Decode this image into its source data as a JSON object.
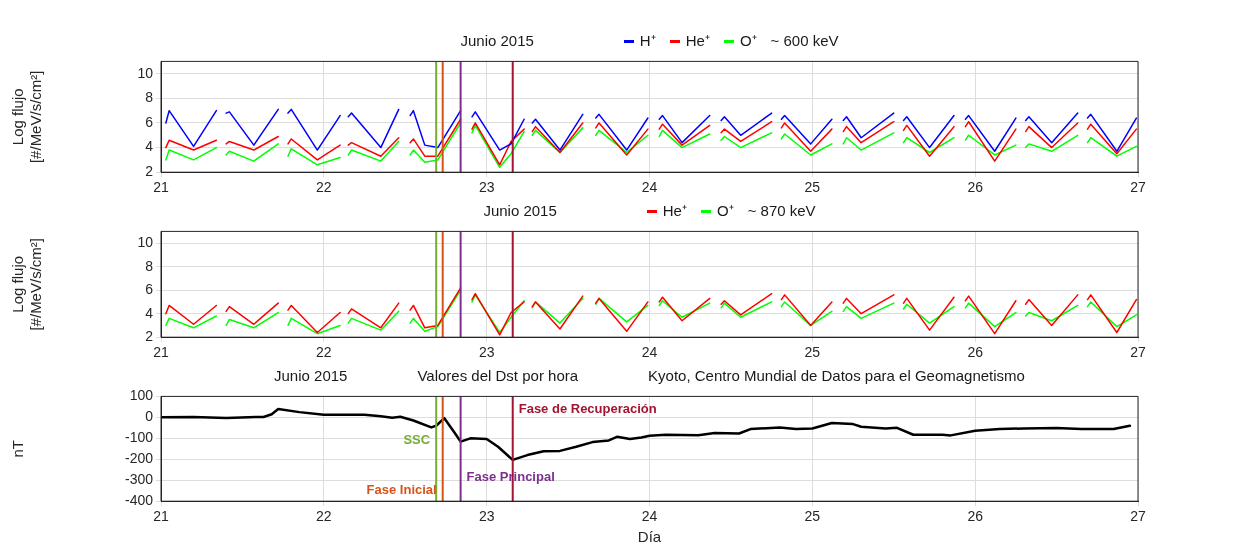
{
  "chart_data": [
    {
      "type": "line",
      "title": "Junio 2015",
      "ylabel": "Log flujo\n[#/MeV/s/cm²]",
      "legend": "top",
      "legend_title": "~ 600 keV",
      "grid": true,
      "xlim": [
        21,
        27
      ],
      "xticks": [
        21,
        22,
        23,
        24,
        25,
        26,
        27
      ],
      "ylim": [
        2,
        11
      ],
      "yticks": [
        2,
        4,
        6,
        8,
        10
      ],
      "x": [
        21.03,
        21.05,
        21.2,
        21.34,
        21.37,
        21.4,
        21.42,
        21.57,
        21.72,
        21.75,
        21.78,
        21.8,
        21.96,
        22.1,
        22.12,
        22.15,
        22.17,
        22.35,
        22.46,
        22.5,
        22.53,
        22.55,
        22.62,
        22.7,
        22.84,
        22.88,
        22.91,
        22.93,
        23.08,
        23.15,
        23.23,
        23.26,
        23.28,
        23.3,
        23.45,
        23.59,
        23.63,
        23.67,
        23.69,
        23.86,
        23.99,
        24.03,
        24.06,
        24.08,
        24.2,
        24.37,
        24.4,
        24.44,
        24.46,
        24.56,
        24.75,
        24.78,
        24.81,
        24.83,
        24.99,
        25.12,
        25.15,
        25.19,
        25.21,
        25.3,
        25.5,
        25.53,
        25.56,
        25.58,
        25.72,
        25.87,
        25.9,
        25.94,
        25.96,
        26.12,
        26.25,
        26.28,
        26.31,
        26.33,
        26.47,
        26.63,
        26.66,
        26.69,
        26.71,
        26.87,
        26.99
      ],
      "series": [
        {
          "name": "H⁺",
          "color": "#0000ff",
          "values": [
            6.0,
            7.0,
            4.1,
            7.0,
            null,
            6.8,
            6.9,
            4.2,
            7.1,
            null,
            6.8,
            7.1,
            3.8,
            6.6,
            null,
            6.5,
            6.8,
            4.0,
            7.1,
            null,
            6.6,
            7.0,
            4.2,
            4.0,
            7.0,
            null,
            6.5,
            6.9,
            3.8,
            4.3,
            6.3,
            null,
            6.0,
            6.3,
            3.8,
            6.7,
            null,
            6.4,
            6.7,
            3.8,
            6.4,
            null,
            6.3,
            6.6,
            4.4,
            6.6,
            null,
            6.2,
            6.5,
            5.0,
            6.8,
            null,
            6.3,
            6.6,
            4.3,
            6.3,
            null,
            6.2,
            6.5,
            4.8,
            6.8,
            null,
            6.2,
            6.5,
            4.0,
            6.6,
            null,
            6.3,
            6.6,
            3.7,
            6.4,
            null,
            6.2,
            6.5,
            4.4,
            6.8,
            null,
            6.4,
            6.7,
            3.7,
            6.4
          ]
        },
        {
          "name": "He⁺",
          "color": "#ff0000",
          "values": [
            4.0,
            4.6,
            3.8,
            4.6,
            null,
            4.3,
            4.5,
            3.8,
            4.9,
            null,
            4.3,
            4.7,
            3.0,
            4.2,
            null,
            4.2,
            4.4,
            3.3,
            4.8,
            null,
            4.4,
            4.7,
            3.3,
            3.3,
            6.3,
            null,
            5.5,
            6.0,
            2.6,
            4.5,
            5.5,
            null,
            5.3,
            5.7,
            3.6,
            6.0,
            null,
            5.6,
            6.0,
            3.4,
            5.5,
            null,
            5.5,
            5.9,
            4.2,
            5.8,
            null,
            5.2,
            5.5,
            4.5,
            6.1,
            null,
            5.6,
            6.0,
            3.7,
            5.5,
            null,
            5.3,
            5.7,
            4.4,
            6.1,
            null,
            5.4,
            5.8,
            3.3,
            5.7,
            null,
            5.7,
            6.1,
            2.9,
            5.5,
            null,
            5.3,
            5.7,
            4.0,
            6.0,
            null,
            5.5,
            5.9,
            3.5,
            5.5
          ]
        },
        {
          "name": "O⁺",
          "color": "#00ff00",
          "values": [
            3.0,
            3.8,
            3.0,
            4.0,
            null,
            3.4,
            3.7,
            2.9,
            4.3,
            null,
            3.3,
            3.9,
            2.6,
            3.2,
            null,
            3.4,
            3.8,
            2.9,
            4.5,
            null,
            3.4,
            3.8,
            2.8,
            3.0,
            6.0,
            null,
            5.2,
            5.8,
            2.4,
            3.5,
            5.3,
            null,
            5.0,
            5.4,
            3.6,
            5.6,
            null,
            5.0,
            5.4,
            3.6,
            5.0,
            null,
            4.9,
            5.4,
            4.0,
            5.1,
            null,
            4.6,
            4.9,
            4.0,
            5.2,
            null,
            4.7,
            5.1,
            3.4,
            4.3,
            null,
            4.3,
            4.8,
            3.8,
            5.2,
            null,
            4.4,
            4.8,
            3.6,
            4.8,
            null,
            4.6,
            5.0,
            3.4,
            4.2,
            null,
            4.0,
            4.3,
            3.7,
            5.0,
            null,
            4.4,
            4.8,
            3.3,
            4.1
          ]
        }
      ],
      "ref_lines": [
        {
          "axis": "x",
          "value": 22.69,
          "color": "#77ac30"
        },
        {
          "axis": "x",
          "value": 22.73,
          "color": "#d95319"
        },
        {
          "axis": "x",
          "value": 22.84,
          "color": "#7e2f8e"
        },
        {
          "axis": "x",
          "value": 23.16,
          "color": "#a2142f"
        }
      ]
    },
    {
      "type": "line",
      "title": "Junio 2015",
      "ylabel": "Log flujo\n[#/MeV/s/cm²]",
      "legend": "top",
      "legend_title": "~ 870 keV",
      "grid": true,
      "xlim": [
        21,
        27
      ],
      "xticks": [
        21,
        22,
        23,
        24,
        25,
        26,
        27
      ],
      "ylim": [
        2,
        11
      ],
      "yticks": [
        2,
        4,
        6,
        8,
        10
      ],
      "x": [
        21.03,
        21.05,
        21.2,
        21.34,
        21.37,
        21.4,
        21.42,
        21.57,
        21.72,
        21.75,
        21.78,
        21.8,
        21.96,
        22.1,
        22.12,
        22.15,
        22.17,
        22.35,
        22.46,
        22.5,
        22.53,
        22.55,
        22.62,
        22.7,
        22.84,
        22.88,
        22.91,
        22.93,
        23.08,
        23.15,
        23.23,
        23.26,
        23.28,
        23.3,
        23.45,
        23.59,
        23.63,
        23.67,
        23.69,
        23.86,
        23.99,
        24.03,
        24.06,
        24.08,
        24.2,
        24.37,
        24.4,
        24.44,
        24.46,
        24.56,
        24.75,
        24.78,
        24.81,
        24.83,
        24.99,
        25.12,
        25.15,
        25.19,
        25.21,
        25.3,
        25.5,
        25.53,
        25.56,
        25.58,
        25.72,
        25.87,
        25.9,
        25.94,
        25.96,
        26.12,
        26.25,
        26.28,
        26.31,
        26.33,
        26.47,
        26.63,
        26.66,
        26.69,
        26.71,
        26.87,
        26.99
      ],
      "series": [
        {
          "name": "He⁺",
          "color": "#ff0000",
          "values": [
            4.0,
            4.7,
            3.1,
            4.7,
            null,
            4.2,
            4.6,
            3.1,
            4.9,
            null,
            4.3,
            4.7,
            2.4,
            4.1,
            null,
            4.0,
            4.4,
            2.8,
            4.9,
            null,
            4.3,
            4.7,
            2.8,
            3.0,
            6.2,
            null,
            5.2,
            5.7,
            2.2,
            4.1,
            5.0,
            null,
            4.6,
            5.0,
            2.7,
            5.5,
            null,
            4.9,
            5.3,
            2.5,
            5.0,
            null,
            5.0,
            5.4,
            3.4,
            5.3,
            null,
            4.8,
            5.1,
            3.9,
            5.7,
            null,
            5.2,
            5.6,
            3.0,
            5.0,
            null,
            4.9,
            5.3,
            4.0,
            5.6,
            null,
            4.9,
            5.3,
            2.6,
            5.4,
            null,
            5.1,
            5.5,
            2.3,
            5.1,
            null,
            4.8,
            5.2,
            3.0,
            5.6,
            null,
            5.2,
            5.6,
            2.4,
            5.2
          ]
        },
        {
          "name": "O⁺",
          "color": "#00ff00",
          "values": [
            3.0,
            3.6,
            2.8,
            3.8,
            null,
            3.0,
            3.5,
            2.8,
            4.1,
            null,
            3.0,
            3.6,
            2.3,
            3.0,
            null,
            3.2,
            3.6,
            2.6,
            4.2,
            null,
            3.2,
            3.6,
            2.5,
            2.9,
            6.0,
            null,
            5.0,
            5.6,
            2.4,
            3.7,
            5.1,
            null,
            4.5,
            5.0,
            3.2,
            5.3,
            null,
            4.8,
            5.3,
            3.3,
            4.7,
            null,
            4.7,
            5.1,
            3.7,
            4.9,
            null,
            4.5,
            4.9,
            3.7,
            5.0,
            null,
            4.6,
            5.0,
            3.0,
            4.2,
            null,
            4.2,
            4.6,
            3.6,
            4.9,
            null,
            4.4,
            4.8,
            3.2,
            4.6,
            null,
            4.5,
            4.9,
            2.9,
            4.1,
            null,
            3.8,
            4.1,
            3.4,
            4.7,
            null,
            4.6,
            5.0,
            2.9,
            3.9
          ]
        }
      ],
      "ref_lines": [
        {
          "axis": "x",
          "value": 22.69,
          "color": "#77ac30"
        },
        {
          "axis": "x",
          "value": 22.73,
          "color": "#d95319"
        },
        {
          "axis": "x",
          "value": 22.84,
          "color": "#7e2f8e"
        },
        {
          "axis": "x",
          "value": 23.16,
          "color": "#a2142f"
        }
      ]
    },
    {
      "type": "line",
      "title": "Junio 2015",
      "subtitle": "Valores del Dst por hora",
      "annotations": [
        "Kyoto, Centro Mundial de Datos para el Geomagnetismo"
      ],
      "xlabel": "Día",
      "ylabel": "nT",
      "grid": true,
      "xlim": [
        21,
        27
      ],
      "xticks": [
        21,
        22,
        23,
        24,
        25,
        26,
        27
      ],
      "ylim": [
        -400,
        100
      ],
      "yticks": [
        -400,
        -300,
        -200,
        -100,
        0,
        100
      ],
      "x": [
        21.0,
        21.2,
        21.4,
        21.6,
        21.63,
        21.68,
        21.72,
        21.85,
        22.0,
        22.25,
        22.35,
        22.42,
        22.47,
        22.55,
        22.66,
        22.69,
        22.74,
        22.8,
        22.84,
        22.9,
        23.0,
        23.07,
        23.16,
        23.25,
        23.35,
        23.45,
        23.55,
        23.65,
        23.75,
        23.8,
        23.88,
        23.95,
        24.0,
        24.1,
        24.3,
        24.4,
        24.55,
        24.62,
        24.8,
        24.9,
        25.0,
        25.12,
        25.25,
        25.3,
        25.45,
        25.52,
        25.62,
        25.8,
        25.85,
        26.0,
        26.15,
        26.3,
        26.5,
        26.65,
        26.85,
        26.95
      ],
      "series": [
        {
          "color": "#000000",
          "values": [
            0,
            2,
            -3,
            2,
            2,
            15,
            40,
            25,
            12,
            12,
            5,
            -2,
            3,
            -15,
            -48,
            -40,
            -4,
            -70,
            -116,
            -100,
            -103,
            -140,
            -203,
            -180,
            -162,
            -160,
            -140,
            -118,
            -110,
            -93,
            -103,
            -96,
            -88,
            -83,
            -85,
            -75,
            -77,
            -56,
            -48,
            -56,
            -53,
            -27,
            -32,
            -45,
            -53,
            -50,
            -83,
            -83,
            -86,
            -64,
            -56,
            -53,
            -51,
            -56,
            -56,
            -40
          ]
        }
      ],
      "ref_lines": [
        {
          "axis": "x",
          "value": 22.69,
          "color": "#77ac30",
          "label": "SSC"
        },
        {
          "axis": "x",
          "value": 22.73,
          "color": "#d95319",
          "label": "Fase Inicial"
        },
        {
          "axis": "x",
          "value": 22.84,
          "color": "#7e2f8e",
          "label": "Fase Principal"
        },
        {
          "axis": "x",
          "value": 23.16,
          "color": "#a2142f",
          "label": "Fase de Recuperación"
        }
      ]
    }
  ]
}
